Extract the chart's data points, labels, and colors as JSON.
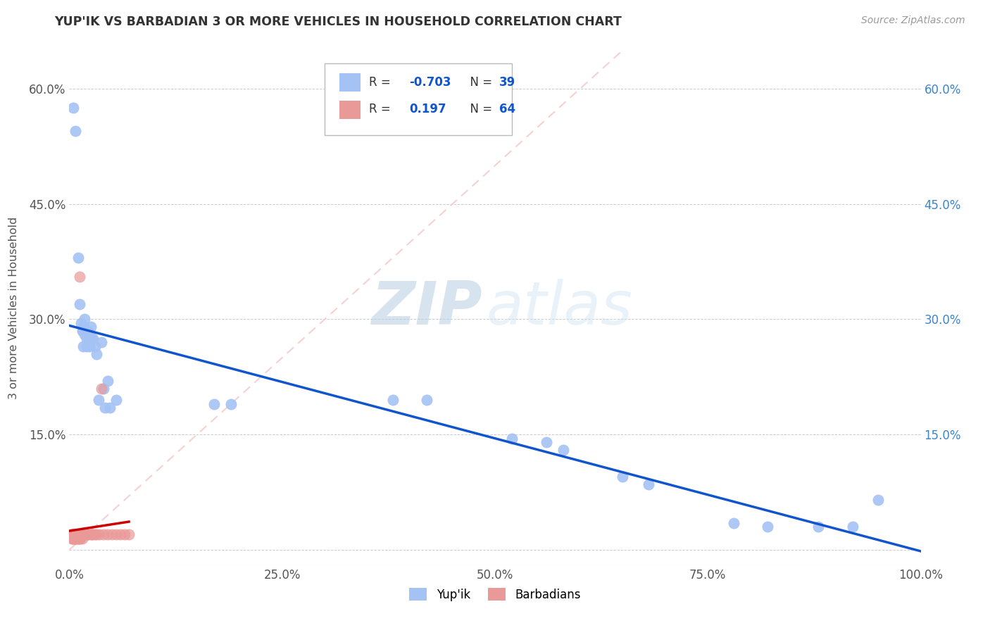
{
  "title": "YUP'IK VS BARBADIAN 3 OR MORE VEHICLES IN HOUSEHOLD CORRELATION CHART",
  "source": "Source: ZipAtlas.com",
  "ylabel": "3 or more Vehicles in Household",
  "xlim": [
    0,
    1.0
  ],
  "ylim": [
    -0.02,
    0.65
  ],
  "xticks": [
    0.0,
    0.25,
    0.5,
    0.75,
    1.0
  ],
  "xticklabels": [
    "0.0%",
    "25.0%",
    "50.0%",
    "75.0%",
    "100.0%"
  ],
  "yticks_left": [
    0.0,
    0.15,
    0.3,
    0.45,
    0.6
  ],
  "yticklabels_left": [
    "",
    "15.0%",
    "30.0%",
    "45.0%",
    "60.0%"
  ],
  "yticks_right": [
    0.0,
    0.15,
    0.3,
    0.45,
    0.6
  ],
  "yticklabels_right": [
    "",
    "15.0%",
    "30.0%",
    "45.0%",
    "60.0%"
  ],
  "color_yupik": "#a4c2f4",
  "color_barbadian": "#ea9999",
  "color_trendline_yupik": "#1155cc",
  "color_trendline_barbadian": "#cc0000",
  "color_trendline_diagonal": "#f4cccc",
  "watermark_zip": "ZIP",
  "watermark_atlas": "atlas",
  "yupik_x": [
    0.005,
    0.007,
    0.01,
    0.012,
    0.014,
    0.015,
    0.016,
    0.016,
    0.017,
    0.018,
    0.018,
    0.02,
    0.02,
    0.022,
    0.022,
    0.024,
    0.025,
    0.026,
    0.028,
    0.03,
    0.032,
    0.034,
    0.038,
    0.04,
    0.042,
    0.045,
    0.048,
    0.055,
    0.17,
    0.19,
    0.38,
    0.42,
    0.52,
    0.56,
    0.58,
    0.65,
    0.68,
    0.78,
    0.82,
    0.88,
    0.92,
    0.95
  ],
  "yupik_y": [
    0.575,
    0.545,
    0.38,
    0.32,
    0.295,
    0.285,
    0.285,
    0.265,
    0.29,
    0.28,
    0.3,
    0.265,
    0.275,
    0.285,
    0.27,
    0.265,
    0.29,
    0.275,
    0.275,
    0.265,
    0.255,
    0.195,
    0.27,
    0.21,
    0.185,
    0.22,
    0.185,
    0.195,
    0.19,
    0.19,
    0.195,
    0.195,
    0.145,
    0.14,
    0.13,
    0.095,
    0.085,
    0.035,
    0.03,
    0.03,
    0.03,
    0.065
  ],
  "barbadian_x": [
    0.002,
    0.003,
    0.003,
    0.004,
    0.004,
    0.004,
    0.005,
    0.005,
    0.005,
    0.005,
    0.005,
    0.006,
    0.006,
    0.006,
    0.006,
    0.007,
    0.007,
    0.007,
    0.007,
    0.008,
    0.008,
    0.008,
    0.009,
    0.009,
    0.01,
    0.01,
    0.01,
    0.011,
    0.011,
    0.012,
    0.012,
    0.012,
    0.013,
    0.013,
    0.014,
    0.015,
    0.015,
    0.016,
    0.017,
    0.018,
    0.019,
    0.02,
    0.021,
    0.022,
    0.025,
    0.026,
    0.028,
    0.03,
    0.032,
    0.035,
    0.04,
    0.045,
    0.05,
    0.055,
    0.06,
    0.065,
    0.07,
    0.012,
    0.038
  ],
  "barbadian_y": [
    0.02,
    0.02,
    0.015,
    0.02,
    0.02,
    0.015,
    0.02,
    0.02,
    0.02,
    0.015,
    0.015,
    0.02,
    0.02,
    0.015,
    0.015,
    0.02,
    0.02,
    0.015,
    0.015,
    0.02,
    0.02,
    0.015,
    0.02,
    0.015,
    0.02,
    0.02,
    0.015,
    0.02,
    0.015,
    0.02,
    0.02,
    0.015,
    0.02,
    0.015,
    0.02,
    0.02,
    0.015,
    0.02,
    0.02,
    0.02,
    0.02,
    0.02,
    0.02,
    0.02,
    0.02,
    0.02,
    0.02,
    0.02,
    0.02,
    0.02,
    0.02,
    0.02,
    0.02,
    0.02,
    0.02,
    0.02,
    0.02,
    0.355,
    0.21
  ]
}
